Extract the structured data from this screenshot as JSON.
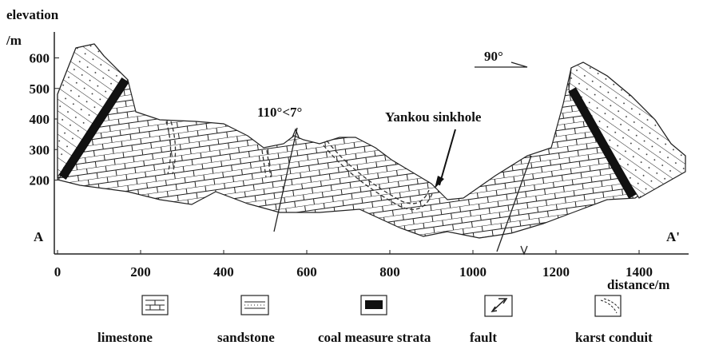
{
  "axes": {
    "y_label_top": "elevation",
    "y_label_unit": "/m",
    "x_label": "distance/m",
    "yticks": [
      200,
      300,
      400,
      500,
      600
    ],
    "xticks": [
      0,
      200,
      400,
      600,
      800,
      1000,
      1200,
      1400
    ]
  },
  "annotations": {
    "start": "A",
    "end": "A'",
    "fault_attitude": "110°<7°",
    "sinkhole": "Yankou sinkhole",
    "direction": "90°"
  },
  "legend": [
    {
      "label": "limestone"
    },
    {
      "label": "sandstone"
    },
    {
      "label": "coal measure strata"
    },
    {
      "label": "fault"
    },
    {
      "label": "karst conduit"
    }
  ]
}
